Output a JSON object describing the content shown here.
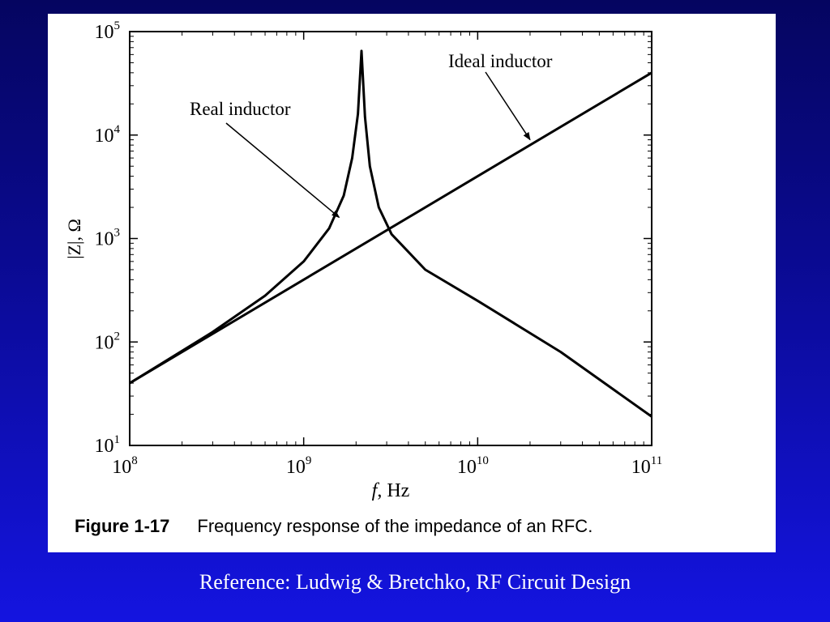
{
  "slide": {
    "background_color": "#0a0a8f",
    "reference": "Reference: Ludwig & Bretchko, RF Circuit Design"
  },
  "figure": {
    "number": "Figure 1-17",
    "caption": "Frequency response of the impedance of an RFC."
  },
  "chart_data": {
    "type": "line",
    "xscale": "log",
    "yscale": "log",
    "xlabel_var": "f",
    "xlabel_unit": ", Hz",
    "ylabel": "|Z|, Ω",
    "xlim": [
      100000000,
      100000000000
    ],
    "ylim": [
      10,
      100000
    ],
    "x_ticks": [
      {
        "base": "10",
        "exp": "8",
        "value": 100000000
      },
      {
        "base": "10",
        "exp": "9",
        "value": 1000000000
      },
      {
        "base": "10",
        "exp": "10",
        "value": 10000000000
      },
      {
        "base": "10",
        "exp": "11",
        "value": 100000000000
      }
    ],
    "y_ticks": [
      {
        "base": "10",
        "exp": "1",
        "value": 10
      },
      {
        "base": "10",
        "exp": "2",
        "value": 100
      },
      {
        "base": "10",
        "exp": "3",
        "value": 1000
      },
      {
        "base": "10",
        "exp": "4",
        "value": 10000
      },
      {
        "base": "10",
        "exp": "5",
        "value": 100000
      }
    ],
    "series": [
      {
        "name": "Ideal inductor",
        "x": [
          100000000,
          1000000000,
          10000000000,
          100000000000
        ],
        "y": [
          40,
          400,
          4000,
          40000
        ]
      },
      {
        "name": "Real inductor",
        "x": [
          100000000,
          300000000,
          600000000,
          1000000000,
          1400000000,
          1700000000,
          1900000000,
          2050000000,
          2150000000,
          2250000000,
          2400000000,
          2700000000,
          3200000000,
          5000000000,
          10000000000,
          30000000000,
          100000000000
        ],
        "y": [
          40,
          125,
          280,
          600,
          1250,
          2600,
          6000,
          16000,
          65000,
          15000,
          5000,
          2000,
          1100,
          500,
          250,
          80,
          19
        ]
      }
    ],
    "annotations": [
      {
        "text": "Real inductor",
        "target_x": 1600000000,
        "target_y": 1600
      },
      {
        "text": "Ideal inductor",
        "target_x": 20000000000,
        "target_y": 9000
      }
    ]
  }
}
